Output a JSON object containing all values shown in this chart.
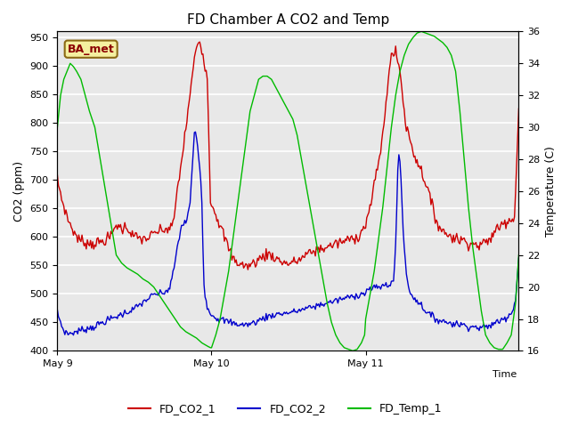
{
  "title": "FD Chamber A CO2 and Temp",
  "xlabel": "Time",
  "ylabel_left": "CO2 (ppm)",
  "ylabel_right": "Temperature (C)",
  "ylim_left": [
    400,
    960
  ],
  "ylim_right": [
    16,
    36
  ],
  "yticks_left": [
    400,
    450,
    500,
    550,
    600,
    650,
    700,
    750,
    800,
    850,
    900,
    950
  ],
  "yticks_right": [
    16,
    18,
    20,
    22,
    24,
    26,
    28,
    30,
    32,
    34,
    36
  ],
  "xtick_labels": [
    "May 9",
    "May 10",
    "May 11"
  ],
  "xtick_positions": [
    0,
    144,
    288
  ],
  "color_co2_1": "#cc0000",
  "color_co2_2": "#0000cc",
  "color_temp": "#00bb00",
  "annotation_text": "BA_met",
  "background_color": "#e8e8e8",
  "grid_color": "#ffffff",
  "legend_labels": [
    "FD_CO2_1",
    "FD_CO2_2",
    "FD_Temp_1"
  ]
}
